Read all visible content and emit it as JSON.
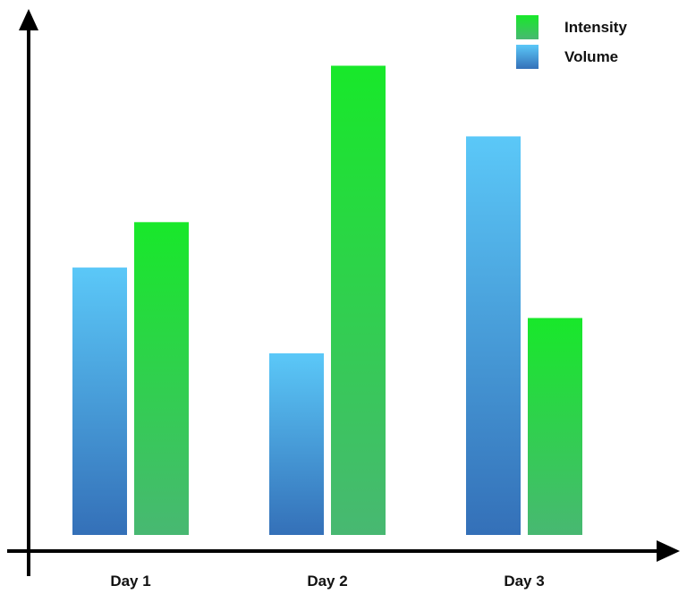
{
  "chart_data": {
    "type": "bar",
    "title": "",
    "xlabel": "",
    "ylabel": "",
    "categories": [
      "Day 1",
      "Day 2",
      "Day 3"
    ],
    "series": [
      {
        "name": "Volume",
        "values": [
          5.3,
          3.6,
          7.9
        ],
        "color_top": "#5bc8f8",
        "color_bottom": "#3470b8"
      },
      {
        "name": "Intensity",
        "values": [
          6.2,
          9.3,
          4.3
        ],
        "color_top": "#18e82a",
        "color_bottom": "#48b872"
      }
    ],
    "ylim": [
      0,
      10
    ],
    "grid": false,
    "y_tick_labels": false,
    "legend_position": "top-right",
    "legend_order": [
      "Intensity",
      "Volume"
    ]
  }
}
